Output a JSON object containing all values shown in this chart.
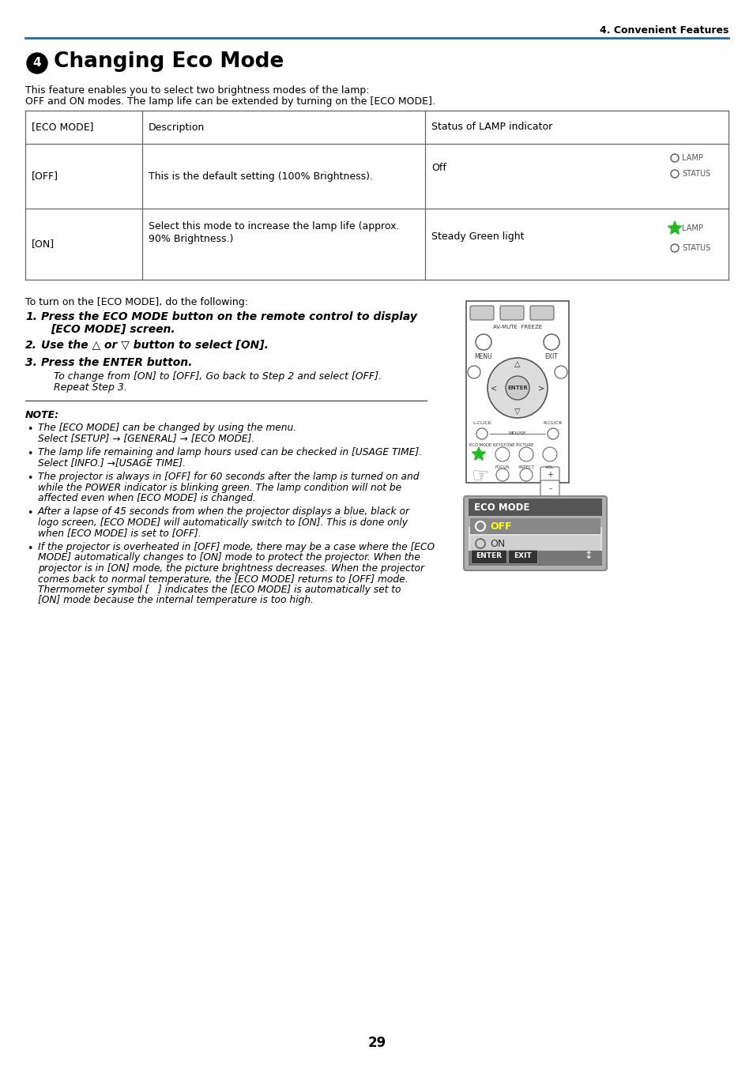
{
  "page_number": "29",
  "header_text": "4. Convenient Features",
  "header_line_color": "#1a6aab",
  "title_number": "4",
  "title_text": "Changing Eco Mode",
  "intro_line1": "This feature enables you to select two brightness modes of the lamp:",
  "intro_line2": "OFF and ON modes. The lamp life can be extended by turning on the [ECO MODE].",
  "table_headers": [
    "[ECO MODE]",
    "Description",
    "Status of LAMP indicator"
  ],
  "steps_intro": "To turn on the [ECO MODE], do the following:",
  "note_header": "NOTE:",
  "notes": [
    "The [ECO MODE] can be changed by using the menu.\nSelect [SETUP] → [GENERAL] → [ECO MODE].",
    "The lamp life remaining and lamp hours used can be checked in [USAGE TIME].\nSelect [INFO.] →[USAGE TIME].",
    "The projector is always in [OFF] for 60 seconds after the lamp is turned on and\nwhile the POWER indicator is blinking green. The lamp condition will not be\naffected even when [ECO MODE] is changed.",
    "After a lapse of 45 seconds from when the projector displays a blue, black or\nlogo screen, [ECO MODE] will automatically switch to [ON]. This is done only\nwhen [ECO MODE] is set to [OFF].",
    "If the projector is overheated in [OFF] mode, there may be a case where the [ECO\nMODE] automatically changes to [ON] mode to protect the projector. When the\nprojector is in [ON] mode, the picture brightness decreases. When the projector\ncomes back to normal temperature, the [ECO MODE] returns to [OFF] mode.\nThermometer symbol [   ] indicates the [ECO MODE] is automatically set to\n[ON] mode because the internal temperature is too high."
  ],
  "note_lines_per_bullet": [
    2,
    2,
    3,
    3,
    6
  ],
  "bg_color": "#ffffff",
  "text_color": "#000000",
  "table_border_color": "#666666",
  "header_color": "#1a6aab"
}
